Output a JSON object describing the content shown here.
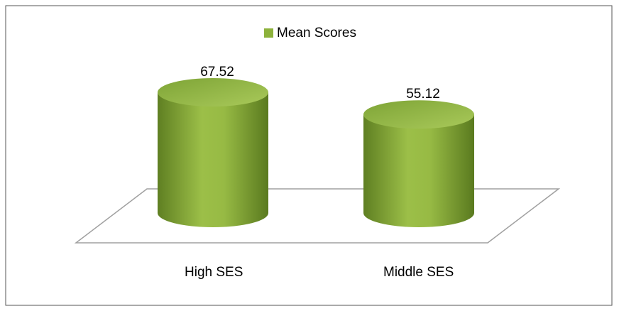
{
  "chart_data": {
    "type": "cylinder",
    "categories": [
      "High SES",
      "Middle SES"
    ],
    "series": [
      {
        "name": "Mean Scores",
        "color": "#8db23c",
        "values": [
          67.52,
          55.12
        ]
      }
    ],
    "legend": "top"
  }
}
